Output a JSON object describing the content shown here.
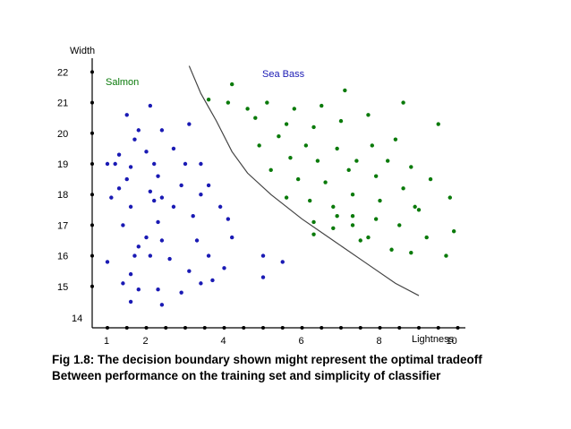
{
  "caption": {
    "line1": "Fig 1.8: The decision boundary shown might represent the optimal tradeoff",
    "line2": "Between performance on the training set and simplicity of classifier"
  },
  "chart_data": {
    "type": "scatter",
    "title": "",
    "ylabel": "Width",
    "xlabel": "Lightness",
    "xlim": [
      0.5,
      10
    ],
    "ylim": [
      14,
      22.5
    ],
    "x_ticks": [
      "1",
      "2",
      "4",
      "6",
      "8",
      "10"
    ],
    "x_tick_values": [
      1,
      2,
      4,
      6,
      8,
      10
    ],
    "y_ticks": [
      "22",
      "21",
      "20",
      "19",
      "18",
      "17",
      "16",
      "15",
      "14"
    ],
    "y_tick_values": [
      22,
      21,
      20,
      19,
      18,
      17,
      16,
      15,
      14
    ],
    "grid": false,
    "series": [
      {
        "name": "Salmon",
        "color": "#1a1ab4",
        "points": [
          [
            1.5,
            20.6
          ],
          [
            2.1,
            20.9
          ],
          [
            2.4,
            20.1
          ],
          [
            1.2,
            19.0
          ],
          [
            1.8,
            20.1
          ],
          [
            1.6,
            18.9
          ],
          [
            1.3,
            19.3
          ],
          [
            3.1,
            20.3
          ],
          [
            1.0,
            19.0
          ],
          [
            2.0,
            19.4
          ],
          [
            2.2,
            19.0
          ],
          [
            2.7,
            19.5
          ],
          [
            3.4,
            19.0
          ],
          [
            1.3,
            18.2
          ],
          [
            1.7,
            19.8
          ],
          [
            2.3,
            18.6
          ],
          [
            3.0,
            19.0
          ],
          [
            2.9,
            18.3
          ],
          [
            3.6,
            18.3
          ],
          [
            1.1,
            17.9
          ],
          [
            1.5,
            18.5
          ],
          [
            2.1,
            18.1
          ],
          [
            2.4,
            17.9
          ],
          [
            3.4,
            18.0
          ],
          [
            3.9,
            17.6
          ],
          [
            1.6,
            17.6
          ],
          [
            2.2,
            17.8
          ],
          [
            2.7,
            17.6
          ],
          [
            2.3,
            17.1
          ],
          [
            3.2,
            17.3
          ],
          [
            1.4,
            17.0
          ],
          [
            2.0,
            16.6
          ],
          [
            1.8,
            16.3
          ],
          [
            2.4,
            16.5
          ],
          [
            3.3,
            16.5
          ],
          [
            3.6,
            16.0
          ],
          [
            4.1,
            17.2
          ],
          [
            4.2,
            16.6
          ],
          [
            1.7,
            16.0
          ],
          [
            1.0,
            15.8
          ],
          [
            2.1,
            16.0
          ],
          [
            2.6,
            15.9
          ],
          [
            3.1,
            15.5
          ],
          [
            3.4,
            15.1
          ],
          [
            1.6,
            15.4
          ],
          [
            1.8,
            14.9
          ],
          [
            2.3,
            14.9
          ],
          [
            2.4,
            14.4
          ],
          [
            1.6,
            14.5
          ],
          [
            3.7,
            15.2
          ],
          [
            4.0,
            15.6
          ],
          [
            5.0,
            16.0
          ],
          [
            5.5,
            15.8
          ],
          [
            5.0,
            15.3
          ],
          [
            2.9,
            14.8
          ],
          [
            1.4,
            15.1
          ]
        ]
      },
      {
        "name": "Sea Bass",
        "color": "#0a7a0a",
        "points": [
          [
            4.2,
            21.6
          ],
          [
            3.6,
            21.1
          ],
          [
            4.1,
            21.0
          ],
          [
            4.6,
            20.8
          ],
          [
            5.1,
            21.0
          ],
          [
            5.8,
            20.8
          ],
          [
            6.5,
            20.9
          ],
          [
            7.1,
            21.4
          ],
          [
            7.7,
            20.6
          ],
          [
            8.6,
            21.0
          ],
          [
            9.5,
            20.3
          ],
          [
            4.8,
            20.5
          ],
          [
            5.6,
            20.3
          ],
          [
            6.3,
            20.2
          ],
          [
            7.0,
            20.4
          ],
          [
            7.8,
            19.6
          ],
          [
            8.4,
            19.8
          ],
          [
            5.4,
            19.9
          ],
          [
            6.1,
            19.6
          ],
          [
            6.9,
            19.5
          ],
          [
            7.4,
            19.1
          ],
          [
            8.2,
            19.1
          ],
          [
            8.8,
            18.9
          ],
          [
            9.3,
            18.5
          ],
          [
            4.9,
            19.6
          ],
          [
            5.7,
            19.2
          ],
          [
            6.4,
            19.1
          ],
          [
            7.2,
            18.8
          ],
          [
            7.9,
            18.6
          ],
          [
            8.6,
            18.2
          ],
          [
            5.2,
            18.8
          ],
          [
            5.9,
            18.5
          ],
          [
            6.6,
            18.4
          ],
          [
            7.3,
            18.0
          ],
          [
            8.0,
            17.8
          ],
          [
            9.0,
            17.5
          ],
          [
            9.8,
            17.9
          ],
          [
            5.6,
            17.9
          ],
          [
            6.2,
            17.8
          ],
          [
            6.8,
            17.6
          ],
          [
            7.3,
            17.3
          ],
          [
            7.9,
            17.2
          ],
          [
            8.5,
            17.0
          ],
          [
            9.2,
            16.6
          ],
          [
            9.9,
            16.8
          ],
          [
            6.3,
            17.1
          ],
          [
            6.8,
            16.9
          ],
          [
            7.5,
            16.5
          ],
          [
            7.7,
            16.6
          ],
          [
            8.3,
            16.2
          ],
          [
            8.8,
            16.1
          ],
          [
            9.7,
            16.0
          ],
          [
            6.3,
            16.7
          ],
          [
            6.9,
            17.3
          ],
          [
            8.9,
            17.6
          ],
          [
            7.3,
            17.0
          ]
        ]
      }
    ],
    "decision_boundary": [
      [
        3.1,
        22.2
      ],
      [
        3.4,
        21.3
      ],
      [
        3.8,
        20.4
      ],
      [
        4.2,
        19.4
      ],
      [
        4.6,
        18.7
      ],
      [
        5.2,
        18.0
      ],
      [
        6.0,
        17.2
      ],
      [
        6.8,
        16.5
      ],
      [
        7.6,
        15.8
      ],
      [
        8.4,
        15.1
      ],
      [
        9.0,
        14.7
      ]
    ]
  }
}
